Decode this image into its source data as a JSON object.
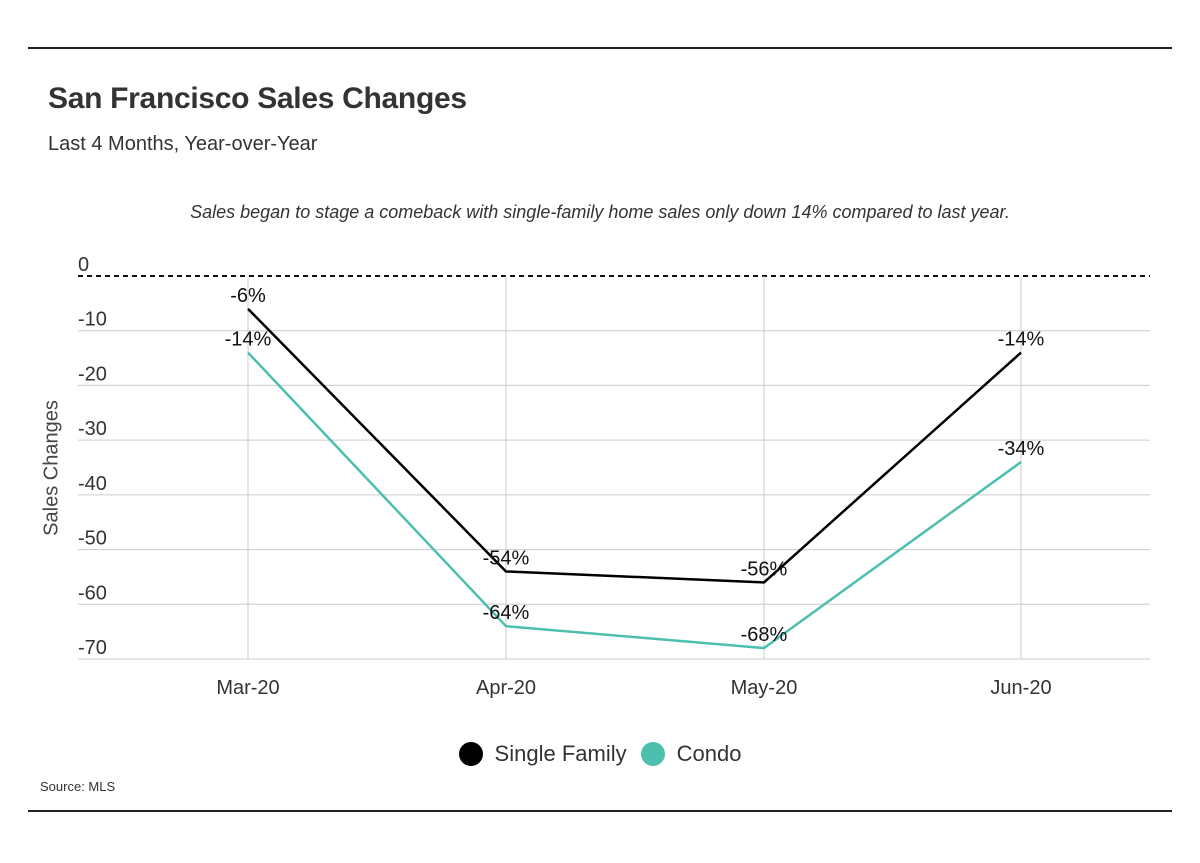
{
  "header": {
    "title": "San Francisco Sales Changes",
    "subtitle": "Last 4 Months, Year-over-Year"
  },
  "footer": {
    "source": "Source: MLS"
  },
  "chart_data": {
    "type": "line",
    "annotation": "Sales began to stage a comeback with single-family home sales only down 14% compared to last year.",
    "ylabel": "Sales Changes",
    "xlabel": "",
    "categories": [
      "Mar-20",
      "Apr-20",
      "May-20",
      "Jun-20"
    ],
    "yticks": [
      0,
      -10,
      -20,
      -30,
      -40,
      -50,
      -60,
      -70
    ],
    "ylim": [
      -70,
      0
    ],
    "grid": true,
    "zero_line": "dashed",
    "legend_placement": "bottom-center",
    "series": [
      {
        "name": "Single Family",
        "color": "#000000",
        "values": [
          -6,
          -54,
          -56,
          -14
        ],
        "labels": [
          "-6%",
          "-54%",
          "-56%",
          "-14%"
        ]
      },
      {
        "name": "Condo",
        "color": "#4dbfae",
        "values": [
          -14,
          -64,
          -68,
          -34
        ],
        "labels": [
          "-14%",
          "-64%",
          "-68%",
          "-34%"
        ]
      }
    ]
  }
}
